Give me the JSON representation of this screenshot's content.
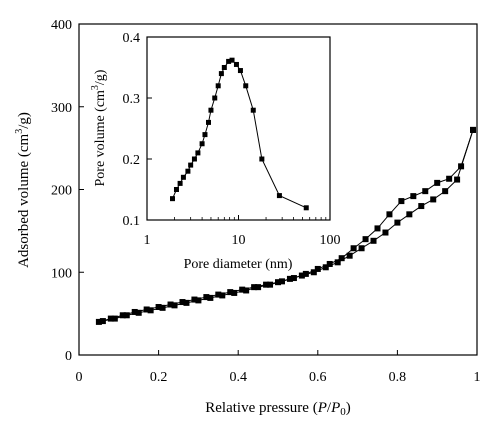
{
  "chart_data": [
    {
      "type": "line",
      "id": "isotherm",
      "xlabel": "Relative pressure (P/P0)",
      "xlabel_parts": {
        "prefix": "Relative pressure (",
        "p": "P",
        "slash": "/",
        "p0": "P",
        "sub": "0",
        "suffix": ")"
      },
      "ylabel": "Adsorbed volume (cm3/g)",
      "ylabel_parts": {
        "prefix": "Adsorbed volume (cm",
        "sup": "3",
        "suffix": "/g)"
      },
      "xlim": [
        0,
        1
      ],
      "ylim": [
        0,
        400
      ],
      "xticks": [
        0,
        0.2,
        0.4,
        0.6,
        0.8,
        1
      ],
      "xtick_labels": [
        "0",
        "0.2",
        "0.4",
        "0.6",
        "0.8",
        "1"
      ],
      "yticks": [
        0,
        100,
        200,
        300,
        400
      ],
      "ytick_labels": [
        "0",
        "100",
        "200",
        "300",
        "400"
      ],
      "grid": false,
      "marker": "square",
      "series": [
        {
          "x": [
            0.05,
            0.08,
            0.11,
            0.14,
            0.17,
            0.2,
            0.23,
            0.26,
            0.29,
            0.32,
            0.35,
            0.38,
            0.41,
            0.44,
            0.47,
            0.5,
            0.53,
            0.56,
            0.59,
            0.62,
            0.65,
            0.68,
            0.71,
            0.74,
            0.77,
            0.8,
            0.83,
            0.86,
            0.89,
            0.92,
            0.95,
            0.99
          ],
          "y": [
            40,
            44,
            48,
            52,
            55,
            58,
            61,
            64,
            67,
            70,
            73,
            76,
            79,
            82,
            85,
            88,
            92,
            96,
            100,
            106,
            112,
            120,
            129,
            138,
            148,
            160,
            170,
            180,
            188,
            198,
            212,
            272
          ]
        },
        {
          "x": [
            0.99,
            0.96,
            0.93,
            0.9,
            0.87,
            0.84,
            0.81,
            0.78,
            0.75,
            0.72,
            0.69,
            0.66,
            0.63,
            0.6,
            0.57,
            0.54,
            0.51,
            0.48,
            0.45,
            0.42,
            0.39,
            0.36,
            0.33,
            0.3,
            0.27,
            0.24,
            0.21,
            0.18,
            0.15,
            0.12,
            0.09,
            0.06
          ],
          "y": [
            272,
            228,
            213,
            208,
            198,
            192,
            186,
            170,
            153,
            140,
            129,
            117,
            110,
            104,
            98,
            93,
            89,
            85,
            82,
            78,
            75,
            72,
            69,
            66,
            63,
            60,
            57,
            54,
            51,
            48,
            44,
            41
          ]
        }
      ]
    },
    {
      "type": "line",
      "id": "inset",
      "xlabel": "Pore diameter (nm)",
      "ylabel": "Pore volume (cm3/g)",
      "ylabel_parts": {
        "prefix": "Pore volume (cm",
        "sup": "3",
        "suffix": "/g)"
      },
      "xscale": "log",
      "xlim": [
        1,
        100
      ],
      "ylim": [
        0.1,
        0.4
      ],
      "xticks": [
        1,
        10,
        100
      ],
      "xtick_labels": [
        "1",
        "10",
        "100"
      ],
      "yticks": [
        0.1,
        0.2,
        0.3,
        0.4
      ],
      "ytick_labels": [
        "0.1",
        "0.2",
        "0.3",
        "0.4"
      ],
      "grid": false,
      "marker": "square",
      "series": [
        {
          "x": [
            1.9,
            2.1,
            2.3,
            2.5,
            2.8,
            3.0,
            3.3,
            3.6,
            4.0,
            4.3,
            4.7,
            5.0,
            5.5,
            6.0,
            6.5,
            7.0,
            7.8,
            8.5,
            9.5,
            10.5,
            12.0,
            14.5,
            18.0,
            28.0,
            55.0
          ],
          "y": [
            0.135,
            0.15,
            0.16,
            0.17,
            0.18,
            0.19,
            0.2,
            0.21,
            0.225,
            0.24,
            0.26,
            0.28,
            0.3,
            0.32,
            0.34,
            0.35,
            0.36,
            0.362,
            0.355,
            0.345,
            0.32,
            0.28,
            0.2,
            0.14,
            0.12
          ]
        }
      ]
    }
  ]
}
